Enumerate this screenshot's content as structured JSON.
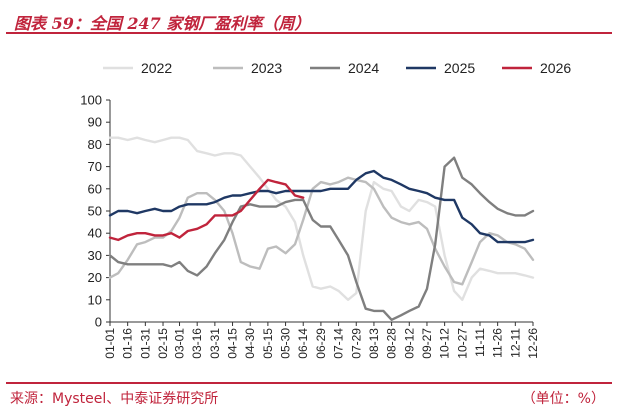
{
  "header": {
    "title": "图表 59：全国 247 家钢厂盈利率（周）"
  },
  "footer": {
    "source": "来源：Mysteel、中泰证券研究所",
    "unit": "（单位：%）"
  },
  "colors": {
    "accent": "#c0243c"
  },
  "chart_data": {
    "type": "line",
    "title": "",
    "xlabel": "",
    "ylabel": "",
    "ylim": [
      0,
      100
    ],
    "yticks": [
      0,
      10,
      20,
      30,
      40,
      50,
      60,
      70,
      80,
      90,
      100
    ],
    "grid": false,
    "legend_position": "top",
    "x": [
      "01-01",
      "01-16",
      "01-31",
      "02-15",
      "03-01",
      "03-16",
      "03-31",
      "04-15",
      "04-30",
      "05-15",
      "05-30",
      "06-14",
      "06-29",
      "07-14",
      "07-29",
      "08-13",
      "08-28",
      "09-12",
      "09-27",
      "10-12",
      "10-27",
      "11-11",
      "11-26",
      "12-11",
      "12-26"
    ],
    "series": [
      {
        "name": "2022",
        "color": "#e0e0e0",
        "points": [
          [
            "01-01",
            83
          ],
          [
            "01-08",
            83
          ],
          [
            "01-16",
            82
          ],
          [
            "01-24",
            83
          ],
          [
            "01-31",
            82
          ],
          [
            "02-08",
            81
          ],
          [
            "02-15",
            82
          ],
          [
            "02-22",
            83
          ],
          [
            "03-01",
            83
          ],
          [
            "03-08",
            82
          ],
          [
            "03-16",
            77
          ],
          [
            "03-24",
            76
          ],
          [
            "03-31",
            75
          ],
          [
            "04-08",
            76
          ],
          [
            "04-15",
            76
          ],
          [
            "04-22",
            75
          ],
          [
            "04-30",
            70
          ],
          [
            "05-08",
            65
          ],
          [
            "05-15",
            60
          ],
          [
            "05-22",
            55
          ],
          [
            "05-30",
            52
          ],
          [
            "06-07",
            45
          ],
          [
            "06-14",
            30
          ],
          [
            "06-22",
            16
          ],
          [
            "06-29",
            15
          ],
          [
            "07-07",
            16
          ],
          [
            "07-14",
            14
          ],
          [
            "07-22",
            10
          ],
          [
            "07-29",
            13
          ],
          [
            "08-06",
            50
          ],
          [
            "08-13",
            63
          ],
          [
            "08-21",
            60
          ],
          [
            "08-28",
            59
          ],
          [
            "09-05",
            52
          ],
          [
            "09-12",
            50
          ],
          [
            "09-20",
            55
          ],
          [
            "09-27",
            54
          ],
          [
            "10-04",
            52
          ],
          [
            "10-12",
            30
          ],
          [
            "10-20",
            14
          ],
          [
            "10-27",
            10
          ],
          [
            "11-04",
            20
          ],
          [
            "11-11",
            24
          ],
          [
            "11-19",
            23
          ],
          [
            "11-26",
            22
          ],
          [
            "12-04",
            22
          ],
          [
            "12-11",
            22
          ],
          [
            "12-19",
            21
          ],
          [
            "12-26",
            20
          ]
        ]
      },
      {
        "name": "2023",
        "color": "#bdbdbd",
        "points": [
          [
            "01-01",
            20
          ],
          [
            "01-08",
            22
          ],
          [
            "01-16",
            28
          ],
          [
            "01-24",
            35
          ],
          [
            "01-31",
            36
          ],
          [
            "02-08",
            38
          ],
          [
            "02-15",
            38
          ],
          [
            "02-22",
            41
          ],
          [
            "03-01",
            47
          ],
          [
            "03-08",
            56
          ],
          [
            "03-16",
            58
          ],
          [
            "03-24",
            58
          ],
          [
            "03-31",
            55
          ],
          [
            "04-08",
            50
          ],
          [
            "04-15",
            40
          ],
          [
            "04-22",
            27
          ],
          [
            "04-30",
            25
          ],
          [
            "05-08",
            24
          ],
          [
            "05-15",
            33
          ],
          [
            "05-22",
            34
          ],
          [
            "05-30",
            31
          ],
          [
            "06-07",
            35
          ],
          [
            "06-14",
            46
          ],
          [
            "06-22",
            60
          ],
          [
            "06-29",
            63
          ],
          [
            "07-07",
            62
          ],
          [
            "07-14",
            63
          ],
          [
            "07-22",
            65
          ],
          [
            "07-29",
            64
          ],
          [
            "08-06",
            63
          ],
          [
            "08-13",
            60
          ],
          [
            "08-21",
            52
          ],
          [
            "08-28",
            47
          ],
          [
            "09-05",
            45
          ],
          [
            "09-12",
            44
          ],
          [
            "09-20",
            45
          ],
          [
            "09-27",
            42
          ],
          [
            "10-04",
            33
          ],
          [
            "10-12",
            25
          ],
          [
            "10-20",
            18
          ],
          [
            "10-27",
            17
          ],
          [
            "11-04",
            27
          ],
          [
            "11-11",
            36
          ],
          [
            "11-19",
            40
          ],
          [
            "11-26",
            39
          ],
          [
            "12-04",
            36
          ],
          [
            "12-11",
            35
          ],
          [
            "12-19",
            33
          ],
          [
            "12-26",
            28
          ]
        ]
      },
      {
        "name": "2024",
        "color": "#7f7f7f",
        "points": [
          [
            "01-01",
            30
          ],
          [
            "01-08",
            27
          ],
          [
            "01-16",
            26
          ],
          [
            "01-24",
            26
          ],
          [
            "01-31",
            26
          ],
          [
            "02-08",
            26
          ],
          [
            "02-15",
            26
          ],
          [
            "02-22",
            25
          ],
          [
            "03-01",
            27
          ],
          [
            "03-08",
            23
          ],
          [
            "03-16",
            21
          ],
          [
            "03-24",
            25
          ],
          [
            "03-31",
            31
          ],
          [
            "04-08",
            37
          ],
          [
            "04-15",
            45
          ],
          [
            "04-22",
            52
          ],
          [
            "04-30",
            53
          ],
          [
            "05-08",
            52
          ],
          [
            "05-15",
            52
          ],
          [
            "05-22",
            52
          ],
          [
            "05-30",
            54
          ],
          [
            "06-07",
            55
          ],
          [
            "06-14",
            55
          ],
          [
            "06-22",
            46
          ],
          [
            "06-29",
            43
          ],
          [
            "07-07",
            43
          ],
          [
            "07-14",
            37
          ],
          [
            "07-22",
            30
          ],
          [
            "07-29",
            18
          ],
          [
            "08-06",
            6
          ],
          [
            "08-13",
            5
          ],
          [
            "08-21",
            5
          ],
          [
            "08-28",
            1
          ],
          [
            "09-05",
            3
          ],
          [
            "09-12",
            5
          ],
          [
            "09-20",
            7
          ],
          [
            "09-27",
            15
          ],
          [
            "10-04",
            35
          ],
          [
            "10-12",
            70
          ],
          [
            "10-20",
            74
          ],
          [
            "10-27",
            65
          ],
          [
            "11-04",
            62
          ],
          [
            "11-11",
            58
          ],
          [
            "11-19",
            54
          ],
          [
            "11-26",
            51
          ],
          [
            "12-04",
            49
          ],
          [
            "12-11",
            48
          ],
          [
            "12-19",
            48
          ],
          [
            "12-26",
            50
          ]
        ]
      },
      {
        "name": "2025",
        "color": "#1f3864",
        "points": [
          [
            "01-01",
            48
          ],
          [
            "01-08",
            50
          ],
          [
            "01-16",
            50
          ],
          [
            "01-24",
            49
          ],
          [
            "01-31",
            50
          ],
          [
            "02-08",
            51
          ],
          [
            "02-15",
            50
          ],
          [
            "02-22",
            50
          ],
          [
            "03-01",
            52
          ],
          [
            "03-08",
            53
          ],
          [
            "03-16",
            53
          ],
          [
            "03-24",
            53
          ],
          [
            "03-31",
            54
          ],
          [
            "04-08",
            56
          ],
          [
            "04-15",
            57
          ],
          [
            "04-22",
            57
          ],
          [
            "04-30",
            58
          ],
          [
            "05-08",
            59
          ],
          [
            "05-15",
            59
          ],
          [
            "05-22",
            58
          ],
          [
            "05-30",
            59
          ],
          [
            "06-07",
            59
          ],
          [
            "06-14",
            59
          ],
          [
            "06-22",
            59
          ],
          [
            "06-29",
            59
          ],
          [
            "07-07",
            60
          ],
          [
            "07-14",
            60
          ],
          [
            "07-22",
            60
          ],
          [
            "07-29",
            64
          ],
          [
            "08-06",
            67
          ],
          [
            "08-13",
            68
          ],
          [
            "08-21",
            65
          ],
          [
            "08-28",
            64
          ],
          [
            "09-05",
            62
          ],
          [
            "09-12",
            60
          ],
          [
            "09-20",
            59
          ],
          [
            "09-27",
            58
          ],
          [
            "10-04",
            56
          ],
          [
            "10-12",
            55
          ],
          [
            "10-20",
            55
          ],
          [
            "10-27",
            47
          ],
          [
            "11-04",
            44
          ],
          [
            "11-11",
            40
          ],
          [
            "11-19",
            39
          ],
          [
            "11-26",
            36
          ],
          [
            "12-04",
            36
          ],
          [
            "12-11",
            36
          ],
          [
            "12-19",
            36
          ],
          [
            "12-26",
            37
          ]
        ]
      },
      {
        "name": "2026",
        "color": "#c0243c",
        "points": [
          [
            "01-01",
            38
          ],
          [
            "01-08",
            37
          ],
          [
            "01-16",
            39
          ],
          [
            "01-24",
            40
          ],
          [
            "01-31",
            40
          ],
          [
            "02-08",
            39
          ],
          [
            "02-15",
            39
          ],
          [
            "02-22",
            40
          ],
          [
            "03-01",
            38
          ],
          [
            "03-08",
            41
          ],
          [
            "03-16",
            42
          ],
          [
            "03-24",
            44
          ],
          [
            "03-31",
            48
          ],
          [
            "04-08",
            48
          ],
          [
            "04-15",
            48
          ],
          [
            "04-22",
            50
          ],
          [
            "04-30",
            55
          ],
          [
            "05-08",
            60
          ],
          [
            "05-15",
            64
          ],
          [
            "05-22",
            63
          ],
          [
            "05-30",
            62
          ],
          [
            "06-07",
            57
          ],
          [
            "06-14",
            56
          ]
        ]
      }
    ]
  }
}
